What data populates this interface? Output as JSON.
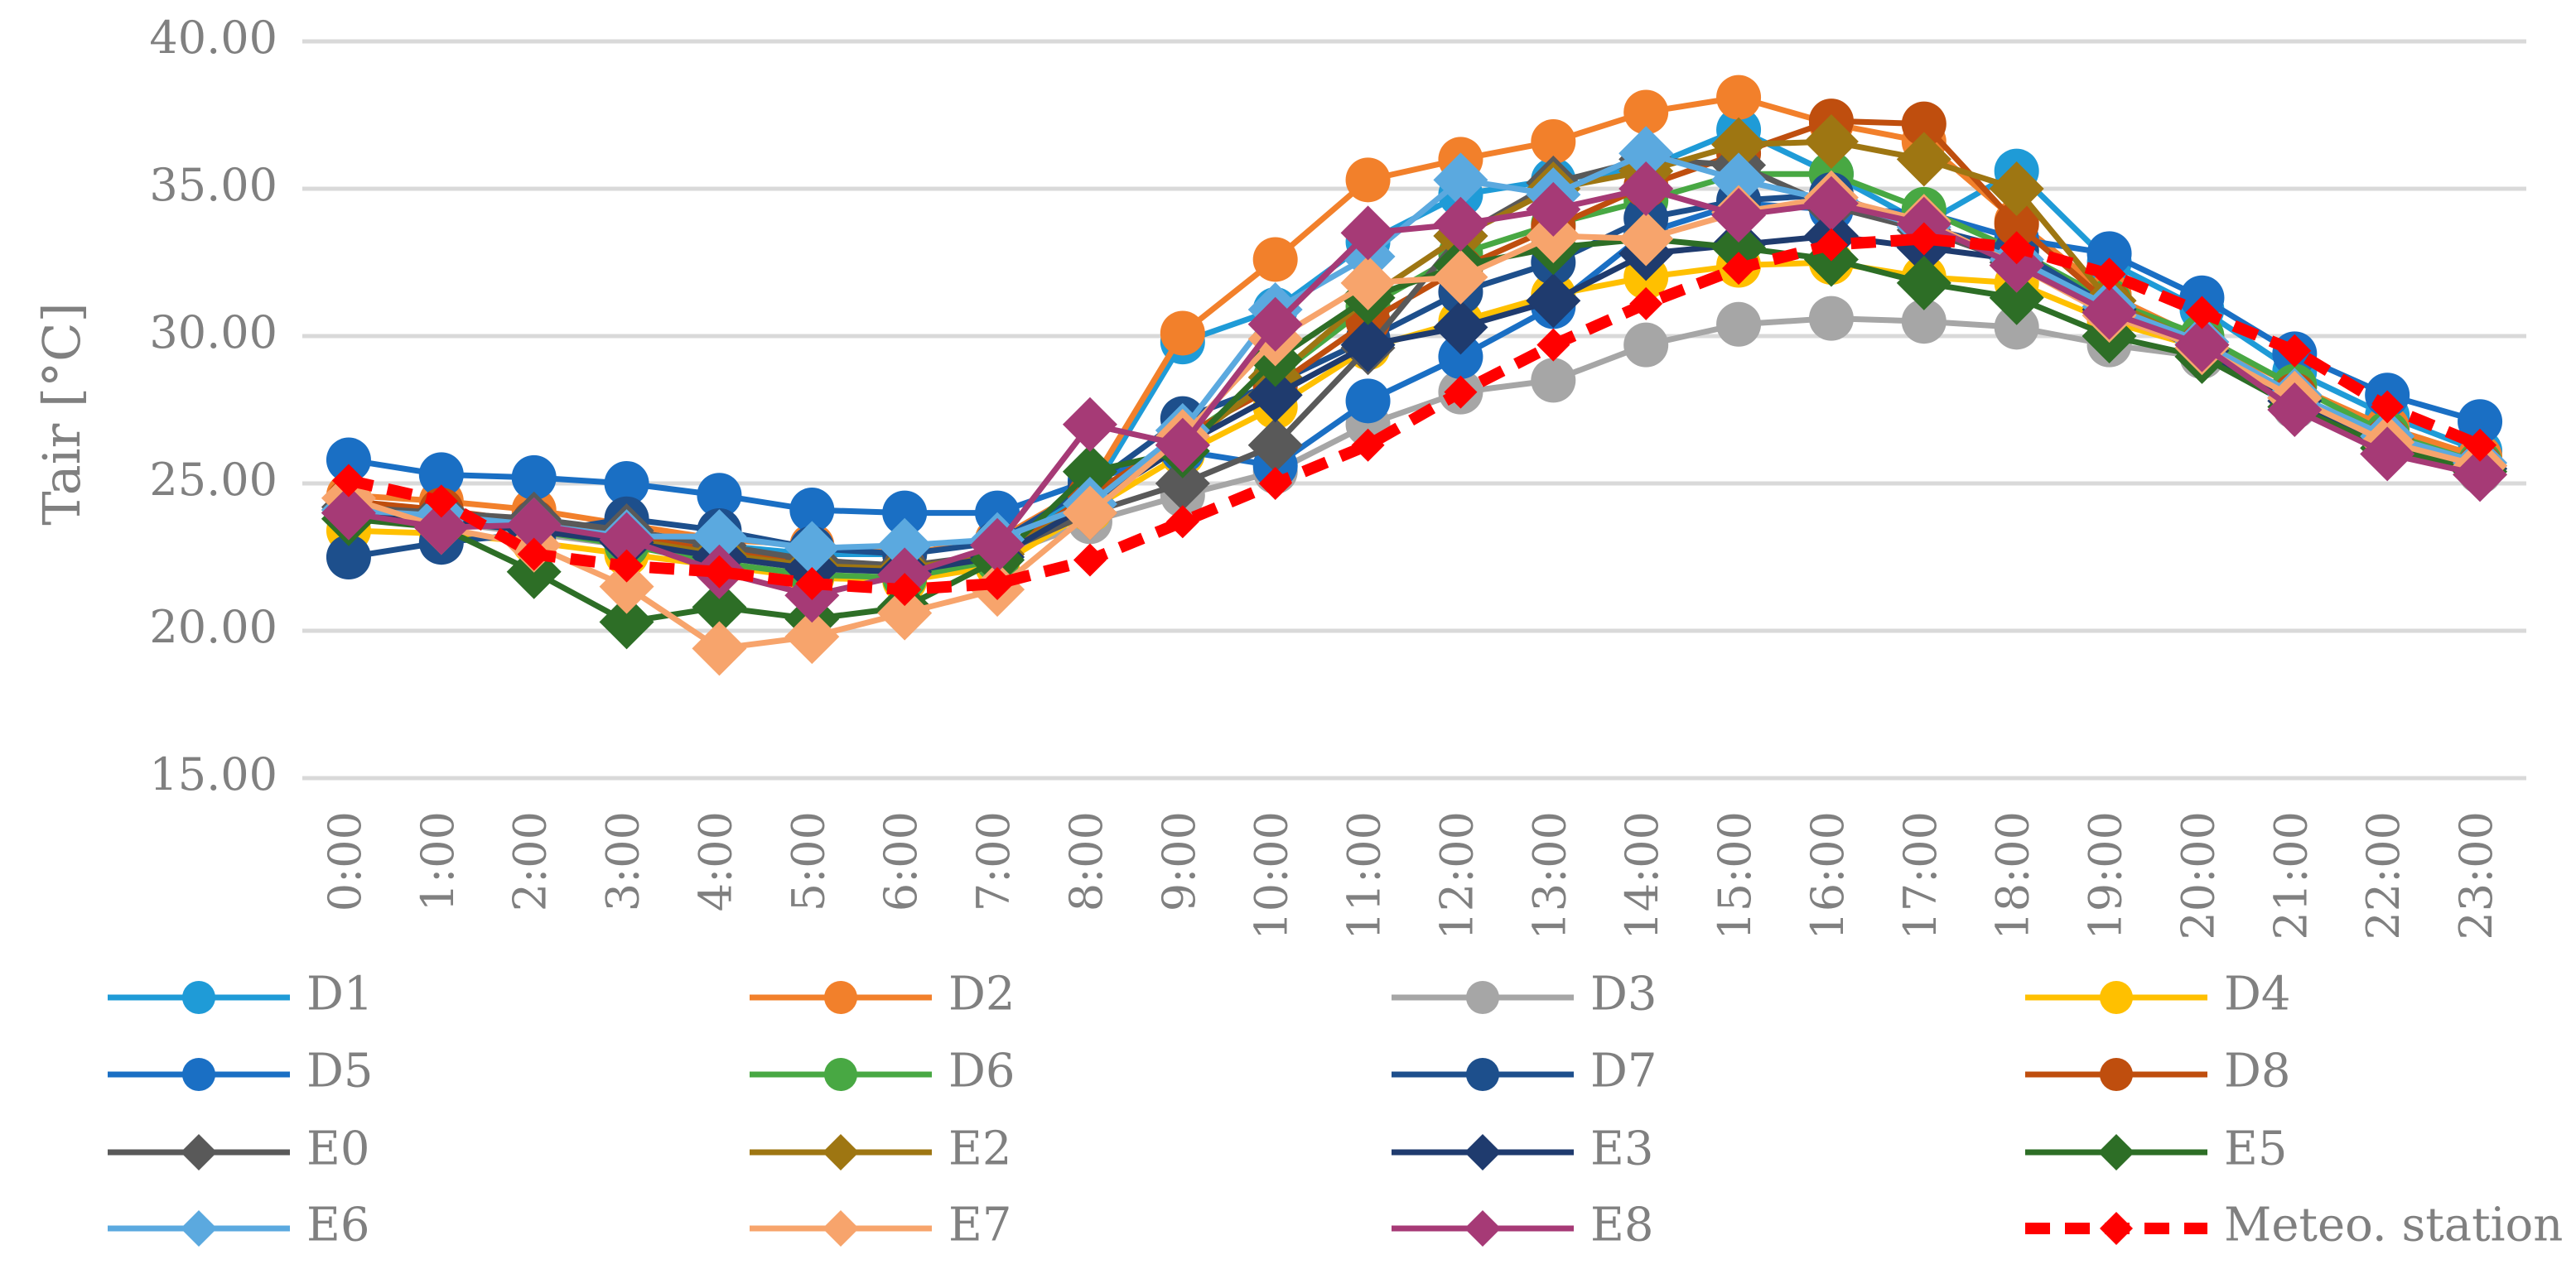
{
  "chart_data": {
    "type": "line",
    "ylabel": "Tair [°C]",
    "xlabel": "",
    "ylim": [
      15,
      40
    ],
    "yticks": [
      "15.00",
      "20.00",
      "25.00",
      "30.00",
      "35.00",
      "40.00"
    ],
    "grid": true,
    "legend_position": "bottom",
    "categories": [
      "0:00",
      "1:00",
      "2:00",
      "3:00",
      "4:00",
      "5:00",
      "6:00",
      "7:00",
      "8:00",
      "9:00",
      "10:00",
      "11:00",
      "12:00",
      "13:00",
      "14:00",
      "15:00",
      "16:00",
      "17:00",
      "18:00",
      "19:00",
      "20:00",
      "21:00",
      "22:00",
      "23:00"
    ],
    "series": [
      {
        "name": "D1",
        "color": "#1f9bd7",
        "marker": "circle",
        "values": [
          24.3,
          24.0,
          23.7,
          23.3,
          22.9,
          22.6,
          22.6,
          23.1,
          24.6,
          29.8,
          30.9,
          33.2,
          34.8,
          35.3,
          35.7,
          37.0,
          35.5,
          33.8,
          35.6,
          32.5,
          30.9,
          28.8,
          27.3,
          26.1
        ]
      },
      {
        "name": "D2",
        "color": "#f2802b",
        "marker": "circle",
        "values": [
          24.6,
          24.4,
          24.1,
          23.6,
          23.1,
          22.9,
          22.6,
          23.1,
          24.9,
          30.1,
          32.6,
          35.3,
          36.0,
          36.6,
          37.6,
          38.1,
          37.2,
          36.6,
          33.9,
          31.4,
          29.9,
          28.3,
          26.9,
          25.9
        ]
      },
      {
        "name": "D3",
        "color": "#a6a6a6",
        "marker": "circle",
        "values": [
          23.9,
          23.7,
          23.3,
          22.9,
          22.5,
          22.1,
          22.0,
          22.5,
          23.7,
          24.6,
          25.4,
          27.0,
          28.1,
          28.5,
          29.7,
          30.4,
          30.6,
          30.5,
          30.3,
          29.7,
          29.3,
          27.6,
          26.3,
          25.4
        ]
      },
      {
        "name": "D4",
        "color": "#ffc000",
        "marker": "circle",
        "values": [
          23.4,
          23.3,
          23.0,
          22.6,
          22.2,
          21.8,
          21.7,
          22.2,
          24.1,
          26.0,
          27.6,
          29.6,
          30.5,
          31.4,
          32.0,
          32.4,
          32.5,
          32.0,
          31.8,
          30.5,
          29.6,
          28.0,
          26.4,
          25.6
        ]
      },
      {
        "name": "D5",
        "color": "#1a6fc4",
        "marker": "circle",
        "values": [
          25.8,
          25.3,
          25.2,
          25.0,
          24.6,
          24.1,
          24.0,
          24.0,
          25.1,
          26.1,
          25.6,
          27.8,
          29.3,
          31.0,
          33.5,
          34.5,
          34.3,
          34.2,
          33.3,
          32.8,
          31.3,
          29.4,
          28.0,
          27.1
        ]
      },
      {
        "name": "D6",
        "color": "#48a843",
        "marker": "circle",
        "values": [
          24.0,
          23.8,
          23.4,
          22.9,
          22.3,
          21.9,
          21.8,
          22.4,
          24.6,
          26.5,
          28.6,
          31.0,
          32.8,
          33.8,
          34.6,
          35.5,
          35.5,
          34.3,
          32.9,
          31.2,
          30.0,
          28.3,
          26.7,
          25.7
        ]
      },
      {
        "name": "D7",
        "color": "#1d4f8c",
        "marker": "circle",
        "values": [
          22.5,
          23.0,
          23.3,
          23.8,
          23.4,
          22.8,
          22.6,
          23.0,
          24.9,
          27.2,
          28.4,
          29.9,
          31.5,
          32.5,
          34.0,
          34.6,
          34.8,
          33.7,
          32.9,
          31.0,
          29.6,
          27.8,
          26.4,
          25.6
        ]
      },
      {
        "name": "D8",
        "color": "#bf4e0e",
        "marker": "circle",
        "values": [
          24.4,
          24.1,
          23.7,
          23.2,
          22.7,
          22.3,
          22.1,
          22.6,
          24.6,
          26.6,
          28.3,
          30.5,
          32.3,
          33.7,
          35.1,
          36.2,
          37.3,
          37.2,
          33.8,
          31.1,
          29.7,
          28.0,
          26.5,
          25.6
        ]
      },
      {
        "name": "E0",
        "color": "#595959",
        "marker": "diamond",
        "values": [
          24.2,
          24.0,
          23.8,
          23.4,
          22.9,
          22.4,
          22.2,
          22.6,
          24.0,
          25.0,
          26.3,
          29.6,
          33.4,
          35.2,
          36.0,
          35.8,
          34.4,
          33.6,
          32.5,
          30.8,
          29.6,
          27.9,
          26.4,
          25.5
        ]
      },
      {
        "name": "E2",
        "color": "#9e7612",
        "marker": "diamond",
        "values": [
          24.1,
          23.8,
          23.5,
          23.1,
          22.6,
          22.2,
          22.1,
          22.6,
          24.3,
          26.3,
          28.6,
          31.3,
          33.4,
          35.0,
          35.6,
          36.5,
          36.6,
          36.0,
          35.0,
          31.2,
          29.7,
          28.0,
          26.5,
          25.6
        ]
      },
      {
        "name": "E3",
        "color": "#1f3b6e",
        "marker": "diamond",
        "values": [
          24.0,
          23.7,
          23.4,
          23.0,
          22.5,
          22.1,
          22.0,
          22.5,
          24.3,
          26.3,
          28.0,
          29.7,
          30.3,
          31.2,
          32.8,
          33.1,
          33.4,
          33.0,
          32.6,
          30.9,
          29.5,
          27.8,
          26.4,
          25.5
        ]
      },
      {
        "name": "E5",
        "color": "#2d6e26",
        "marker": "diamond",
        "values": [
          23.8,
          23.5,
          22.0,
          20.3,
          20.8,
          20.4,
          20.8,
          22.4,
          25.4,
          26.1,
          29.2,
          31.3,
          32.4,
          33.0,
          33.3,
          33.0,
          32.6,
          31.8,
          31.3,
          30.0,
          29.3,
          27.6,
          26.2,
          25.4
        ]
      },
      {
        "name": "E6",
        "color": "#5ba9df",
        "marker": "diamond",
        "values": [
          24.1,
          23.9,
          23.6,
          23.2,
          23.2,
          22.8,
          22.9,
          23.1,
          24.3,
          26.8,
          30.9,
          32.7,
          35.3,
          34.8,
          36.2,
          35.3,
          34.6,
          33.7,
          32.6,
          31.0,
          29.8,
          28.0,
          26.6,
          25.7
        ]
      },
      {
        "name": "E7",
        "color": "#f7a46c",
        "marker": "diamond",
        "values": [
          24.5,
          23.5,
          22.9,
          21.5,
          19.4,
          19.8,
          20.6,
          21.4,
          24.0,
          26.6,
          29.9,
          31.8,
          32.0,
          33.4,
          33.3,
          34.2,
          34.7,
          33.9,
          32.4,
          30.7,
          29.6,
          27.9,
          26.4,
          25.6
        ]
      },
      {
        "name": "E8",
        "color": "#a63a76",
        "marker": "diamond",
        "values": [
          24.0,
          23.5,
          23.6,
          23.1,
          22.0,
          21.2,
          21.9,
          22.9,
          27.0,
          26.3,
          30.4,
          33.5,
          33.8,
          34.3,
          35.0,
          34.1,
          34.5,
          33.8,
          32.4,
          30.8,
          29.7,
          27.5,
          26.0,
          25.3
        ]
      },
      {
        "name": "Meteo. station",
        "color": "#ff0000",
        "marker": "diamond",
        "dashed": true,
        "values": [
          25.1,
          24.4,
          22.6,
          22.2,
          22.0,
          21.6,
          21.4,
          21.6,
          22.4,
          23.7,
          25.0,
          26.3,
          28.1,
          29.7,
          31.1,
          32.3,
          33.1,
          33.3,
          33.0,
          32.1,
          30.8,
          29.5,
          27.6,
          26.3
        ]
      }
    ]
  }
}
